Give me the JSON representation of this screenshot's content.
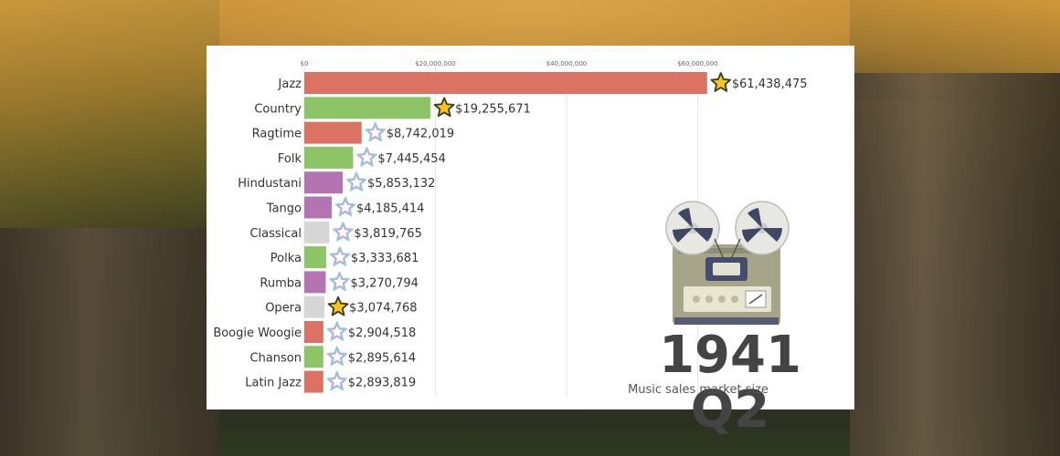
{
  "chart_data": {
    "type": "bar",
    "orientation": "horizontal",
    "categories": [
      "Jazz",
      "Country",
      "Ragtime",
      "Folk",
      "Hindustani",
      "Tango",
      "Classical",
      "Polka",
      "Rumba",
      "Opera",
      "Boogie Woogie",
      "Chanson",
      "Latin Jazz"
    ],
    "values": [
      61438475,
      19255671,
      8742019,
      7445454,
      5853132,
      4185414,
      3819765,
      3333681,
      3270794,
      3074768,
      2904518,
      2895614,
      2893819
    ],
    "value_labels": [
      "$61,438,475",
      "$19,255,671",
      "$8,742,019",
      "$7,445,454",
      "$5,853,132",
      "$4,185,414",
      "$3,819,765",
      "$3,333,681",
      "$3,270,794",
      "$3,074,768",
      "$2,904,518",
      "$2,895,614",
      "$2,893,819"
    ],
    "bar_colors": [
      "#db7264",
      "#8dc468",
      "#db7264",
      "#8dc468",
      "#b474b4",
      "#b474b4",
      "#d6d6d6",
      "#8dc468",
      "#b474b4",
      "#d6d6d6",
      "#db7264",
      "#8dc468",
      "#db7264"
    ],
    "star_filled": [
      true,
      true,
      false,
      false,
      false,
      false,
      false,
      false,
      false,
      true,
      false,
      false,
      false
    ],
    "x_ticks": [
      0,
      20000000,
      40000000,
      60000000
    ],
    "x_tick_labels": [
      "$0",
      "$20,000,000",
      "$40,000,000",
      "$60,000,000"
    ],
    "xlim": [
      0,
      80000000
    ],
    "grid": true,
    "period": "1941 Q2",
    "subtitle": "Music sales market size"
  },
  "icons": {
    "filled_star": "filled-star-icon",
    "outline_star": "outline-star-icon",
    "tape_recorder": "reel-to-reel-tape-recorder-icon"
  }
}
